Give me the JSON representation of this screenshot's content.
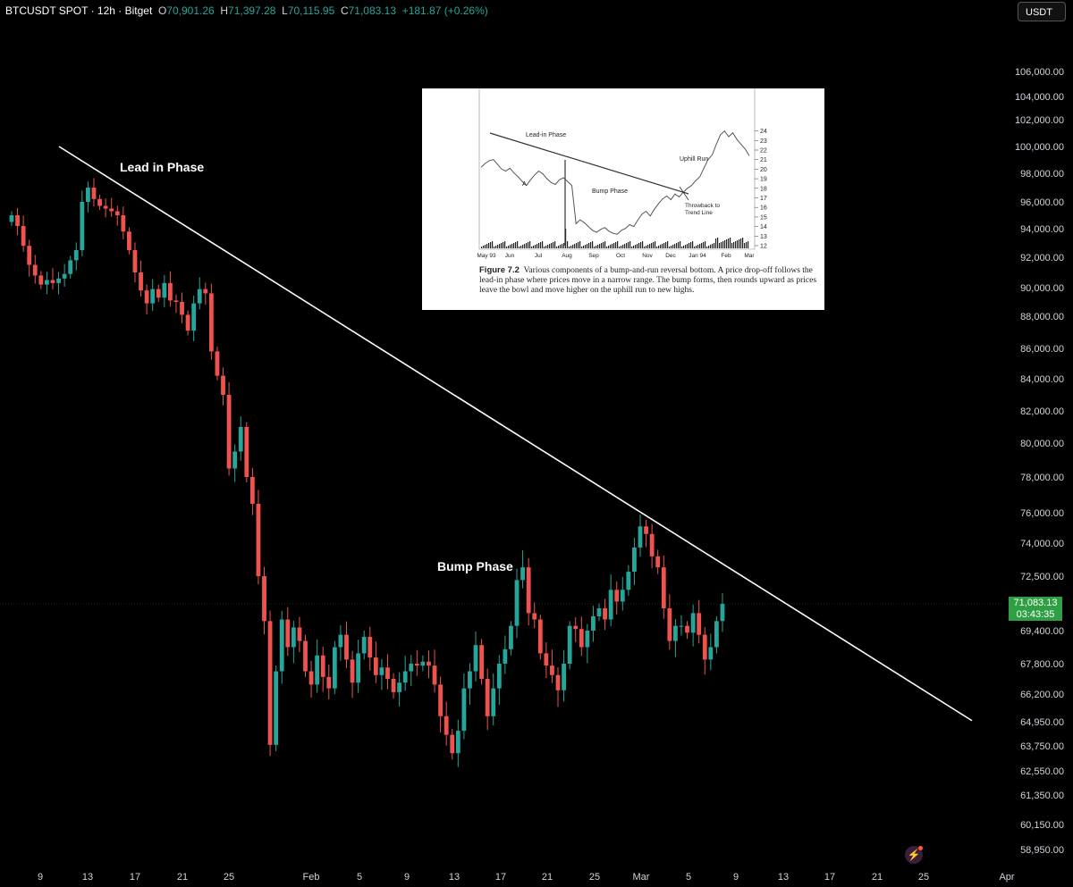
{
  "header": {
    "symbol": "BTCUSDT SPOT · 12h · Bitget",
    "o_label": "O",
    "o": "70,901.26",
    "h_label": "H",
    "h": "71,397.28",
    "l_label": "L",
    "l": "70,115.95",
    "c_label": "C",
    "c": "71,083.13",
    "change": "+181.87 (+0.26%)"
  },
  "currency_button": "USDT",
  "price_tag": {
    "price": "71,083.13",
    "countdown": "03:43:35"
  },
  "annotations": {
    "lead_in": "Lead in Phase",
    "bump": "Bump Phase"
  },
  "colors": {
    "up": "#26a69a",
    "down": "#ef5350",
    "background": "#000000"
  },
  "chart_data": {
    "type": "candlestick",
    "x_ticks": [
      "9",
      "13",
      "17",
      "21",
      "25",
      "Feb",
      "5",
      "9",
      "13",
      "17",
      "21",
      "25",
      "Mar",
      "5",
      "9",
      "13",
      "17",
      "21",
      "25",
      "Apr"
    ],
    "y_ticks": [
      "106,000.00",
      "104,000.00",
      "102,000.00",
      "100,000.00",
      "98,000.00",
      "96,000.00",
      "94,000.00",
      "92,000.00",
      "90,000.00",
      "88,000.00",
      "86,000.00",
      "84,000.00",
      "82,000.00",
      "80,000.00",
      "78,000.00",
      "76,000.00",
      "74,000.00",
      "72,500.00",
      "71,083.13",
      "69,400.00",
      "67,800.00",
      "66,200.00",
      "64,950.00",
      "63,750.00",
      "62,550.00",
      "61,350.00",
      "60,150.00",
      "58,950.00"
    ],
    "trendline": [
      [
        100000,
        100000
      ],
      [
        65000,
        65000
      ]
    ],
    "closes": [
      95000,
      94200,
      92800,
      91500,
      90800,
      90200,
      90500,
      90300,
      90600,
      90900,
      91800,
      92500,
      96000,
      97000,
      96200,
      95700,
      95500,
      95300,
      95000,
      93800,
      92500,
      91000,
      89800,
      88900,
      89900,
      89300,
      90300,
      89100,
      89000,
      88100,
      87100,
      88900,
      89900,
      89600,
      85800,
      84200,
      83000,
      78500,
      79500,
      81000,
      78000,
      76500,
      72500,
      70000,
      63800,
      67400,
      70100,
      68600,
      69600,
      68900,
      67400,
      66700,
      68200,
      67100,
      66500,
      68600,
      69200,
      68000,
      66800,
      68300,
      69100,
      68100,
      67200,
      67600,
      67000,
      66300,
      66800,
      67400,
      67800,
      67700,
      67900,
      67700,
      66700,
      65200,
      64300,
      63400,
      64500,
      66500,
      67400,
      68700,
      67000,
      65200,
      66500,
      67800,
      68500,
      69700,
      72300,
      72900,
      70500,
      70100,
      68300,
      67700,
      67200,
      66400,
      67800,
      69700,
      69500,
      68600,
      69400,
      70300,
      70800,
      70100,
      71800,
      71200,
      71800,
      72700,
      73800,
      75100,
      74600,
      73400,
      72900,
      70800,
      68900,
      69700,
      69700,
      69300,
      70500,
      69200,
      68000,
      68600,
      70000,
      71083
    ]
  },
  "inset": {
    "y_ticks": [
      "24",
      "23",
      "22",
      "21",
      "20",
      "19",
      "18",
      "17",
      "16",
      "15",
      "14",
      "13",
      "12"
    ],
    "x_ticks": [
      "May 93",
      "Jun",
      "Jul",
      "Aug",
      "Sep",
      "Oct",
      "Nov",
      "Dec",
      "Jan 94",
      "Feb",
      "Mar"
    ],
    "labels": {
      "lead_in": "Lead-in Phase",
      "uphill": "Uphill Run",
      "bump": "Bump Phase",
      "a": "A",
      "throwback_1": "Throwback to",
      "throwback_2": "Trend Line"
    },
    "caption_title": "Figure 7.2",
    "caption_text": "Various components of a bump-and-run reversal bottom. A price drop-off follows the lead-in phase where prices move in a narrow range. The bump forms, then rounds upward as prices leave the bowl and move higher on the uphill run to new highs.",
    "series": [
      20.2,
      20.6,
      20.9,
      21.0,
      20.5,
      20.0,
      19.8,
      20.1,
      19.6,
      19.2,
      18.7,
      18.3,
      18.9,
      19.4,
      19.8,
      19.5,
      19.0,
      18.6,
      18.4,
      18.9,
      19.1,
      18.7,
      18.3,
      14.3,
      14.7,
      14.4,
      14.0,
      13.6,
      13.4,
      13.7,
      13.9,
      13.5,
      13.3,
      13.2,
      13.6,
      13.8,
      14.2,
      14.0,
      14.7,
      15.3,
      15.6,
      15.1,
      15.8,
      16.4,
      16.9,
      17.2,
      16.8,
      17.4,
      17.1,
      17.6,
      18.0,
      18.3,
      18.8,
      19.2,
      20.1,
      21.0,
      21.5,
      22.6,
      23.6,
      24.0,
      23.4,
      23.8,
      23.1,
      22.6,
      22.1,
      21.4
    ]
  }
}
